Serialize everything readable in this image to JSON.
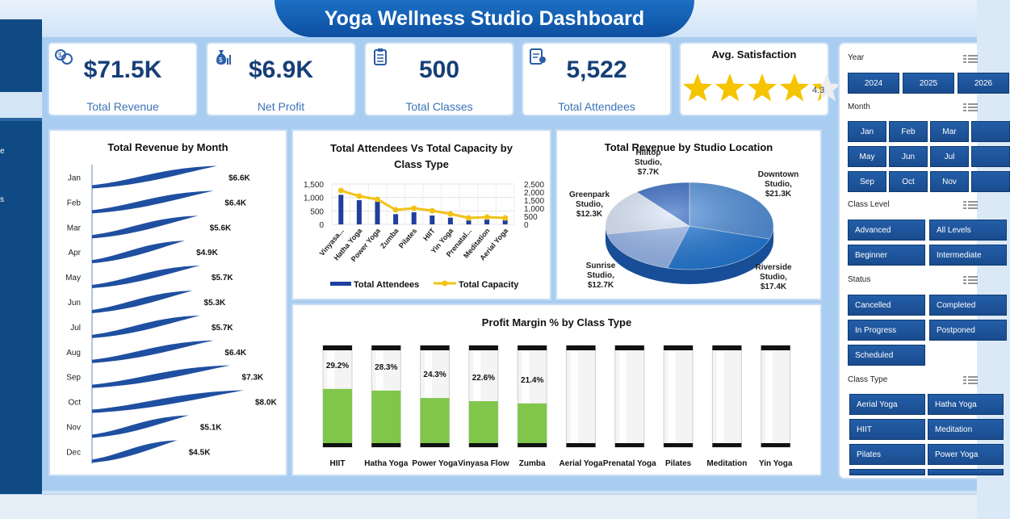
{
  "header": {
    "title": "Yoga Wellness Studio Dashboard"
  },
  "left_nav": {
    "fragments": [
      "e",
      "s"
    ]
  },
  "kpis": [
    {
      "value": "$71.5K",
      "label": "Total Revenue",
      "icon": "revenue-icon"
    },
    {
      "value": "$6.9K",
      "label": "Net Profit",
      "icon": "money-bag-icon"
    },
    {
      "value": "500",
      "label": "Total Classes",
      "icon": "clipboard-icon"
    },
    {
      "value": "5,522",
      "label": "Total Attendees",
      "icon": "attendees-icon"
    }
  ],
  "satisfaction": {
    "title": "Avg. Satisfaction",
    "value": "4.3",
    "rating": 4.3,
    "max": 5
  },
  "slicers": {
    "year": {
      "title": "Year",
      "items": [
        "2024",
        "2025",
        "2026"
      ]
    },
    "month": {
      "title": "Month",
      "items": [
        "Jan",
        "Feb",
        "Mar",
        "May",
        "Jun",
        "Jul",
        "Sep",
        "Oct",
        "Nov"
      ]
    },
    "class_level": {
      "title": "Class Level",
      "items": [
        "Advanced",
        "All Levels",
        "Beginner",
        "Intermediate"
      ]
    },
    "status": {
      "title": "Status",
      "items": [
        "Cancelled",
        "Completed",
        "In Progress",
        "Postponed",
        "Scheduled"
      ]
    },
    "class_type": {
      "title": "Class Type",
      "items": [
        "Aerial Yoga",
        "Hatha Yoga",
        "HIIT",
        "Meditation",
        "Pilates",
        "Power Yoga"
      ]
    }
  },
  "chart_data": [
    {
      "type": "bar",
      "title": "Total Revenue by Month",
      "categories": [
        "Jan",
        "Feb",
        "Mar",
        "Apr",
        "May",
        "Jun",
        "Jul",
        "Aug",
        "Sep",
        "Oct",
        "Nov",
        "Dec"
      ],
      "values": [
        6.6,
        6.4,
        5.6,
        4.9,
        5.7,
        5.3,
        5.7,
        6.4,
        7.3,
        8.0,
        5.1,
        4.5
      ],
      "labels": [
        "$6.6K",
        "$6.4K",
        "$5.6K",
        "$4.9K",
        "$5.7K",
        "$5.3K",
        "$5.7K",
        "$6.4K",
        "$7.3K",
        "$8.0K",
        "$5.1K",
        "$4.5K"
      ],
      "orientation": "horizontal",
      "color": "#1f4fa0"
    },
    {
      "type": "bar",
      "title": "Total Attendees Vs Total Capacity by Class Type",
      "categories": [
        "Vinyasa Flow",
        "Hatha Yoga",
        "Power Yoga",
        "Zumba",
        "Pilates",
        "HIIT",
        "Yin Yoga",
        "Prenatal Yoga",
        "Meditation",
        "Aerial Yoga"
      ],
      "category_labels": [
        "Vinyasa...",
        "Hatha Yoga",
        "Power Yoga",
        "Zumba",
        "Pilates",
        "HIIT",
        "Yin Yoga",
        "Prenatal...",
        "Meditation",
        "Aerial Yoga"
      ],
      "series": [
        {
          "name": "Total Attendees",
          "type": "bar",
          "axis": "left",
          "color": "#1f3f9e",
          "values": [
            1100,
            900,
            850,
            380,
            450,
            330,
            250,
            150,
            180,
            160
          ]
        },
        {
          "name": "Total Capacity",
          "type": "line",
          "axis": "right",
          "color": "#f2c218",
          "values": [
            2100,
            1750,
            1550,
            900,
            1000,
            850,
            650,
            400,
            450,
            400
          ]
        }
      ],
      "ylim_left": [
        0,
        1500
      ],
      "yticks_left": [
        "1,500",
        "1,000",
        "500",
        "0"
      ],
      "ylim_right": [
        0,
        2500
      ],
      "yticks_right": [
        "2,500",
        "2,000",
        "1,500",
        "1,000",
        "500",
        "0"
      ],
      "legend": "bottom"
    },
    {
      "type": "pie",
      "title": "Total Revenue by Studio Location",
      "categories": [
        "Downtown Studio",
        "Riverside Studio",
        "Sunrise Studio",
        "Greenpark Studio",
        "Hilltop Studio"
      ],
      "values": [
        21.3,
        17.4,
        12.7,
        12.3,
        7.7
      ],
      "label_lines": [
        [
          "Downtown",
          "Studio,",
          "$21.3K"
        ],
        [
          "Riverside",
          "Studio,",
          "$17.4K"
        ],
        [
          "Sunrise",
          "Studio,",
          "$12.7K"
        ],
        [
          "Greenpark",
          "Studio,",
          "$12.3K"
        ],
        [
          "Hilltop",
          "Studio,",
          "$7.7K"
        ]
      ],
      "colors": [
        "#4e8fdd",
        "#1f78d8",
        "#96b8ef",
        "#dce9fb",
        "#2f66c4"
      ]
    },
    {
      "type": "bar",
      "title": "Profit Margin % by Class Type",
      "categories": [
        "HIIT",
        "Hatha Yoga",
        "Power Yoga",
        "Vinyasa Flow",
        "Zumba",
        "Aerial Yoga",
        "Prenatal Yoga",
        "Pilates",
        "Meditation",
        "Yin Yoga"
      ],
      "values": [
        29.2,
        28.3,
        24.3,
        22.6,
        21.4,
        0,
        0,
        0,
        0,
        0
      ],
      "labels": [
        "29.2%",
        "28.3%",
        "24.3%",
        "22.6%",
        "21.4%",
        "",
        "",
        "",
        "",
        ""
      ],
      "color": "#80c64b"
    }
  ]
}
